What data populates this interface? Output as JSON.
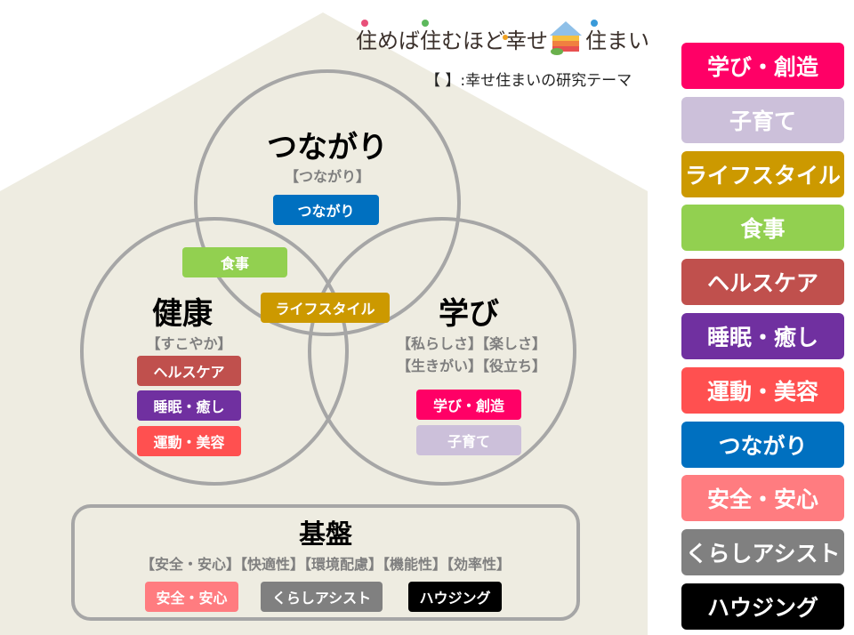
{
  "logo": {
    "text": "住めば住むほど幸せ住まい"
  },
  "legend_note": "【 】:幸せ住まいの研究テーマ",
  "circles": {
    "connection": {
      "title": "つながり",
      "sub": "【つながり】",
      "tags": [
        {
          "label": "つながり",
          "color": "#0070C0"
        }
      ]
    },
    "health": {
      "title": "健康",
      "sub": "【すこやか】",
      "tags": [
        {
          "label": "ヘルスケア",
          "color": "#C0504D"
        },
        {
          "label": "睡眠・癒し",
          "color": "#7030A0"
        },
        {
          "label": "運動・美容",
          "color": "#FF5050"
        }
      ]
    },
    "learning": {
      "title": "学び",
      "sub1": "【私らしさ】【楽しさ】",
      "sub2": "【生きがい】【役立ち】",
      "tags": [
        {
          "label": "学び・創造",
          "color": "#FF0066"
        },
        {
          "label": "子育て",
          "color": "#CCC0DA"
        }
      ]
    }
  },
  "overlaps": {
    "food": {
      "label": "食事",
      "color": "#92D050"
    },
    "lifestyle": {
      "label": "ライフスタイル",
      "color": "#CC9900"
    }
  },
  "base": {
    "title": "基盤",
    "sub": "【安全・安心】【快適性】【環境配慮】【機能性】【効率性】",
    "tags": [
      {
        "label": "安全・安心",
        "color": "#FF7C80"
      },
      {
        "label": "くらしアシスト",
        "color": "#808080"
      },
      {
        "label": "ハウジング",
        "color": "#000000"
      }
    ]
  },
  "legend": [
    {
      "label": "学び・創造",
      "color": "#FF0066"
    },
    {
      "label": "子育て",
      "color": "#CCC0DA"
    },
    {
      "label": "ライフスタイル",
      "color": "#CC9900"
    },
    {
      "label": "食事",
      "color": "#92D050"
    },
    {
      "label": "ヘルスケア",
      "color": "#C0504D"
    },
    {
      "label": "睡眠・癒し",
      "color": "#7030A0"
    },
    {
      "label": "運動・美容",
      "color": "#FF5050"
    },
    {
      "label": "つながり",
      "color": "#0070C0"
    },
    {
      "label": "安全・安心",
      "color": "#FF7C80"
    },
    {
      "label": "くらしアシスト",
      "color": "#808080"
    },
    {
      "label": "ハウジング",
      "color": "#000000"
    }
  ],
  "colors": {
    "house": "#EEECE1",
    "circle_stroke": "#A6A6A6"
  }
}
